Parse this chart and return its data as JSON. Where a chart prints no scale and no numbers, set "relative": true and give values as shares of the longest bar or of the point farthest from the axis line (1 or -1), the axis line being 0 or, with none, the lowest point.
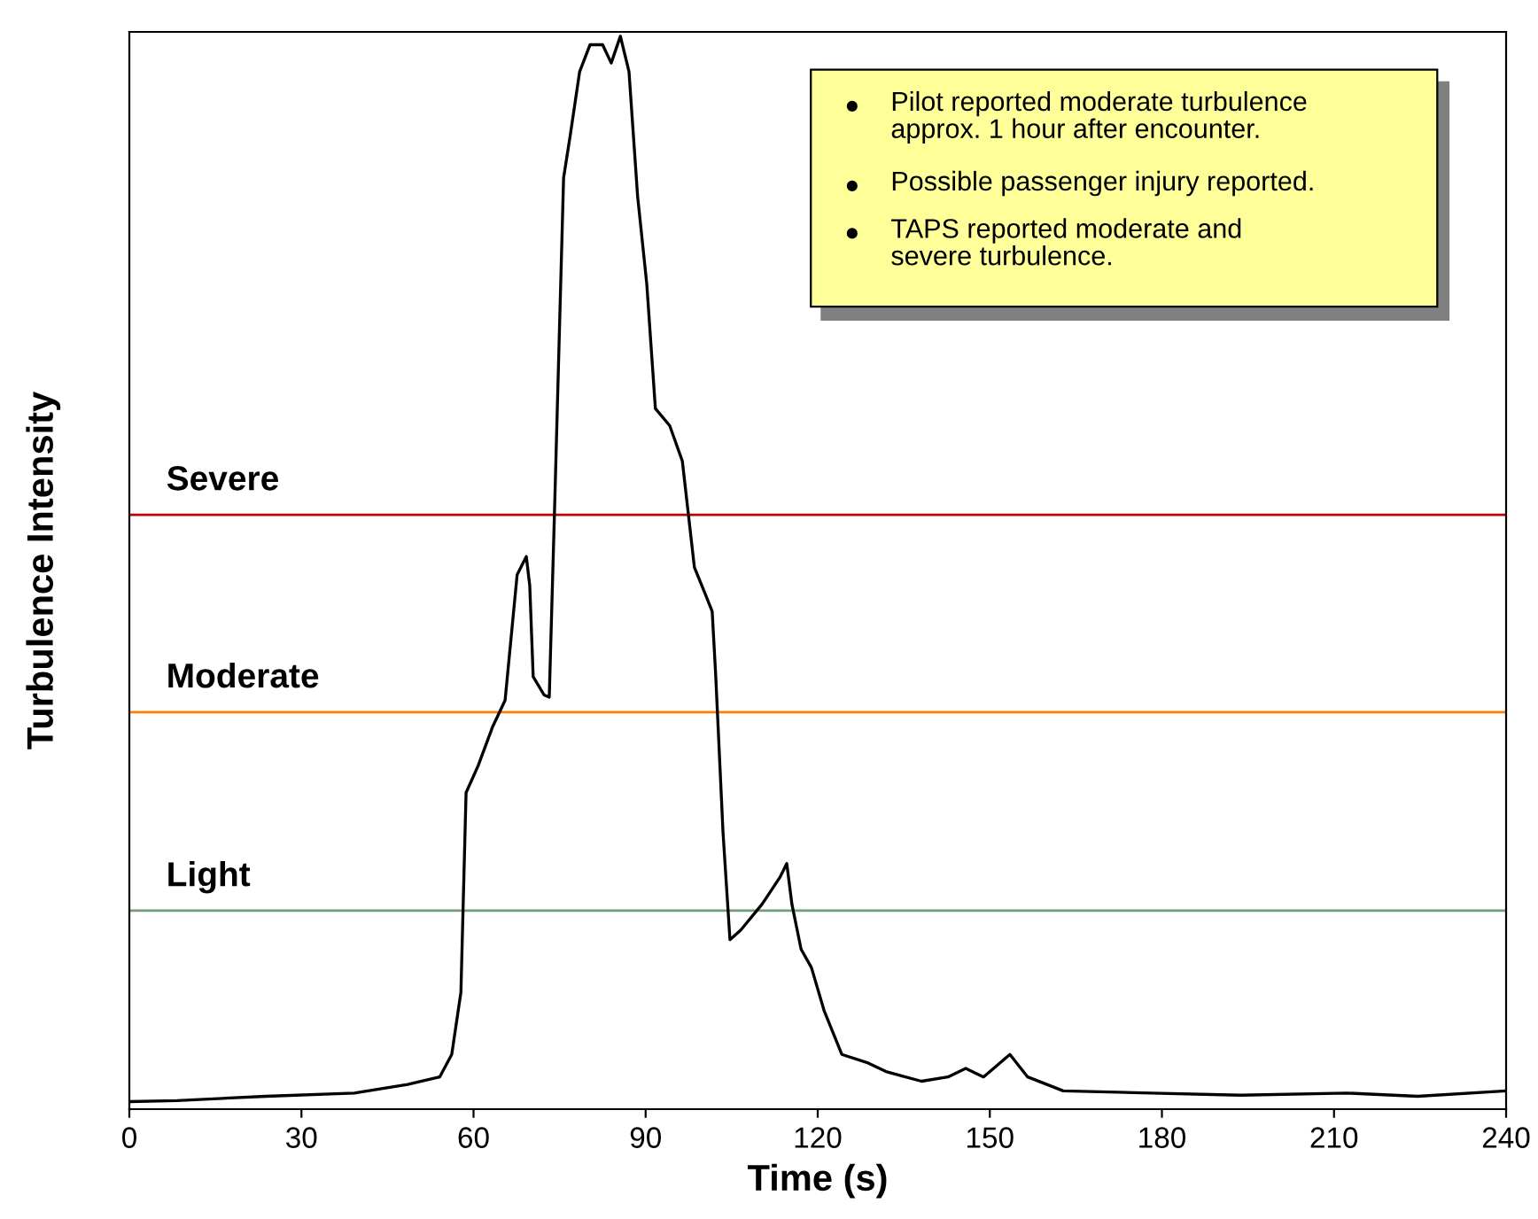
{
  "chart_data": {
    "type": "line",
    "relative": true,
    "xlabel": "Time (s)",
    "ylabel": "Turbulence Intensity",
    "xlim": [
      0,
      240
    ],
    "xticks": [
      0,
      30,
      60,
      90,
      120,
      150,
      180,
      210,
      240
    ],
    "grid": false,
    "series": [
      {
        "color": "#000000",
        "x": [
          0,
          8.3,
          23.8,
          39.2,
          48.5,
          54.1,
          56.2,
          57.8,
          58.7,
          60.8,
          63.3,
          65.5,
          67.6,
          69.2,
          69.8,
          70.4,
          72.3,
          73.2,
          74.1,
          75.7,
          76.9,
          78.5,
          80.3,
          82.5,
          84.0,
          85.6,
          87.1,
          88.6,
          90.2,
          91.7,
          94.2,
          96.4,
          98.5,
          100.4,
          101.6,
          102.2,
          103.5,
          104.7,
          106.6,
          110.3,
          113.4,
          114.6,
          115.5,
          117.1,
          118.9,
          121.1,
          124.2,
          128.8,
          131.9,
          138.1,
          142.7,
          145.8,
          148.9,
          153.5,
          156.6,
          162.8,
          178.2,
          193.7,
          212.2,
          224.6,
          240
        ],
        "values": [
          0.007,
          0.008,
          0.012,
          0.015,
          0.023,
          0.03,
          0.051,
          0.109,
          0.295,
          0.32,
          0.356,
          0.381,
          0.498,
          0.515,
          0.488,
          0.403,
          0.386,
          0.384,
          0.554,
          0.868,
          0.909,
          0.967,
          0.992,
          0.992,
          0.975,
          1.0,
          0.967,
          0.851,
          0.769,
          0.653,
          0.637,
          0.604,
          0.505,
          0.48,
          0.464,
          0.406,
          0.257,
          0.158,
          0.167,
          0.191,
          0.216,
          0.229,
          0.191,
          0.149,
          0.132,
          0.092,
          0.051,
          0.043,
          0.035,
          0.026,
          0.03,
          0.038,
          0.03,
          0.051,
          0.03,
          0.017,
          0.015,
          0.013,
          0.015,
          0.012,
          0.017
        ]
      }
    ],
    "ref_lines": [
      {
        "axis": "y",
        "value": 0.554,
        "label": "Severe",
        "color": "#c00000"
      },
      {
        "axis": "y",
        "value": 0.37,
        "label": "Moderate",
        "color": "#ff8000"
      },
      {
        "axis": "y",
        "value": 0.185,
        "label": "Light",
        "color": "#70a070"
      }
    ],
    "annotations": [
      "Pilot reported moderate turbulence\napprox. 1 hour after encounter.",
      "Possible passenger injury reported.",
      "TAPS reported moderate and\nsevere turbulence."
    ]
  }
}
